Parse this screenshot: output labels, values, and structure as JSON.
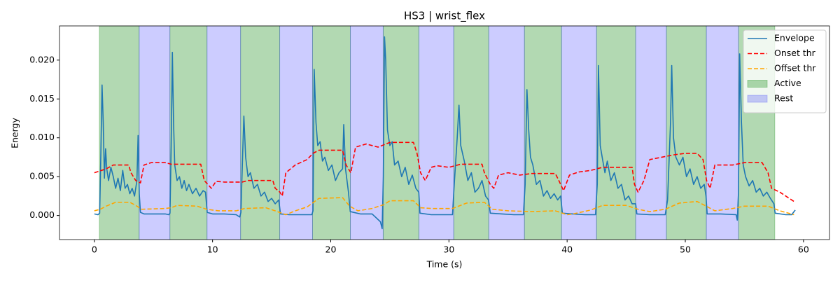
{
  "chart_data": {
    "type": "line",
    "title": "HS3 | wrist_flex",
    "x_label": "Time (s)",
    "y_label": "Energy",
    "xlim": [
      -2.95,
      62.2
    ],
    "ylim": [
      -0.0031,
      0.0244
    ],
    "xticks": [
      0,
      10,
      20,
      30,
      40,
      50,
      60
    ],
    "yticks": [
      {
        "value": 0,
        "label": "0.000"
      },
      {
        "value": 0.005,
        "label": "0.005"
      },
      {
        "value": 0.01,
        "label": "0.010"
      },
      {
        "value": 0.015,
        "label": "0.015"
      },
      {
        "value": 0.02,
        "label": "0.020"
      }
    ],
    "legend": "upper right",
    "series": [
      {
        "name": "Envelope",
        "color": "#1f77b4",
        "dash": "solid",
        "x": [
          0,
          0.3,
          0.45,
          0.55,
          0.65,
          0.75,
          0.85,
          0.95,
          1.05,
          1.2,
          1.4,
          1.6,
          1.8,
          2.0,
          2.2,
          2.4,
          2.6,
          2.8,
          3.0,
          3.2,
          3.4,
          3.6,
          3.7,
          3.8,
          3.9,
          4.2,
          5,
          6,
          6.3,
          6.4,
          6.5,
          6.6,
          6.7,
          6.8,
          7.0,
          7.2,
          7.4,
          7.6,
          7.8,
          8.0,
          8.3,
          8.6,
          8.9,
          9.2,
          9.4,
          9.55,
          10,
          11,
          12,
          12.3,
          12.4,
          12.55,
          12.65,
          12.8,
          13.0,
          13.2,
          13.5,
          13.8,
          14.1,
          14.4,
          14.7,
          15.0,
          15.3,
          15.6,
          15.75,
          16.5,
          17.5,
          18.4,
          18.5,
          18.6,
          18.75,
          18.9,
          19.1,
          19.3,
          19.5,
          19.8,
          20.1,
          20.4,
          20.7,
          21.0,
          21.1,
          21.25,
          21.5,
          21.65,
          22.5,
          23.5,
          24.2,
          24.35,
          24.45,
          24.55,
          24.65,
          24.8,
          25.0,
          25.2,
          25.4,
          25.7,
          26.0,
          26.3,
          26.6,
          26.9,
          27.2,
          27.45,
          27.55,
          28.5,
          29.5,
          30.3,
          30.45,
          30.7,
          30.85,
          31.0,
          31.3,
          31.6,
          31.9,
          32.2,
          32.5,
          32.8,
          33.1,
          33.35,
          33.5,
          34.5,
          35.5,
          36.3,
          36.45,
          36.6,
          36.75,
          36.9,
          37.1,
          37.4,
          37.7,
          38.0,
          38.3,
          38.6,
          38.9,
          39.2,
          39.45,
          39.6,
          40.5,
          41.5,
          42.4,
          42.55,
          42.65,
          42.8,
          43.0,
          43.2,
          43.4,
          43.7,
          44.0,
          44.3,
          44.6,
          44.9,
          45.2,
          45.5,
          45.8,
          45.9,
          47,
          48.3,
          48.5,
          48.75,
          48.85,
          49.0,
          49.2,
          49.5,
          49.8,
          50.1,
          50.4,
          50.7,
          51.0,
          51.3,
          51.6,
          51.75,
          51.85,
          53,
          54.3,
          54.4,
          54.5,
          54.6,
          54.75,
          54.9,
          55.1,
          55.4,
          55.7,
          56.0,
          56.3,
          56.6,
          56.9,
          57.2,
          57.5,
          57.6,
          58.5,
          59.0,
          59.3
        ],
        "values": [
          0.0002,
          0.0001,
          0.0003,
          0.008,
          0.0168,
          0.012,
          0.0048,
          0.0086,
          0.006,
          0.0045,
          0.0062,
          0.005,
          0.0035,
          0.0048,
          0.0032,
          0.0058,
          0.0035,
          0.004,
          0.0028,
          0.0035,
          0.0025,
          0.0045,
          0.0103,
          0.0028,
          0.0004,
          0.0002,
          0.0002,
          0.0002,
          0.0001,
          0.0003,
          0.009,
          0.021,
          0.012,
          0.0065,
          0.0045,
          0.005,
          0.0035,
          0.0045,
          0.0032,
          0.004,
          0.0028,
          0.0035,
          0.0025,
          0.0032,
          0.003,
          0.0004,
          0.0002,
          0.0002,
          0.0001,
          -0.0002,
          0.0004,
          0.008,
          0.0128,
          0.0075,
          0.005,
          0.0055,
          0.0035,
          0.004,
          0.0025,
          0.003,
          0.0018,
          0.0022,
          0.0015,
          0.002,
          0.0002,
          0.0001,
          0.0001,
          0.0001,
          0.0006,
          0.0188,
          0.012,
          0.009,
          0.0095,
          0.007,
          0.0075,
          0.0058,
          0.0065,
          0.0045,
          0.0055,
          0.006,
          0.0117,
          0.006,
          0.003,
          0.0005,
          0.0002,
          0.0002,
          -0.0008,
          -0.0017,
          0.005,
          0.023,
          0.02,
          0.011,
          0.009,
          0.0095,
          0.0065,
          0.007,
          0.005,
          0.0062,
          0.004,
          0.0052,
          0.0035,
          0.003,
          0.0003,
          0.0001,
          0.0001,
          0.0001,
          0.004,
          0.01,
          0.0142,
          0.009,
          0.007,
          0.0045,
          0.0055,
          0.003,
          0.0035,
          0.0045,
          0.0025,
          0.002,
          0.0003,
          0.0002,
          0.0001,
          0.0001,
          0.004,
          0.0162,
          0.011,
          0.0075,
          0.0065,
          0.004,
          0.0045,
          0.0025,
          0.0032,
          0.0022,
          0.0028,
          0.002,
          0.0025,
          0.0003,
          0.0002,
          0.0001,
          0.0001,
          0.004,
          0.0193,
          0.009,
          0.0072,
          0.0055,
          0.007,
          0.0045,
          0.0055,
          0.0035,
          0.004,
          0.002,
          0.0025,
          0.0015,
          0.0015,
          0.0002,
          0.0001,
          0.0001,
          0.002,
          0.012,
          0.0193,
          0.01,
          0.0075,
          0.0065,
          0.0075,
          0.005,
          0.006,
          0.004,
          0.005,
          0.0035,
          0.004,
          0.0025,
          0.0002,
          0.0002,
          0.0001,
          -0.0006,
          0.003,
          0.0208,
          0.012,
          0.0065,
          0.005,
          0.0038,
          0.0045,
          0.003,
          0.0035,
          0.0025,
          0.003,
          0.0022,
          0.0015,
          0.0003,
          0.0001,
          0.0001,
          0.0007
        ]
      },
      {
        "name": "Onset thr",
        "color": "#ff0000",
        "dash": "dashed",
        "x": [
          0,
          1,
          1.6,
          2.9,
          3.1,
          3.5,
          3.9,
          4.2,
          4.8,
          6,
          6.5,
          9,
          9.3,
          9.9,
          10.3,
          11,
          12.5,
          13,
          15.1,
          15.3,
          15.7,
          15.9,
          16.2,
          17,
          18,
          18.5,
          19,
          21,
          21.3,
          21.7,
          22.1,
          23,
          23.5,
          24,
          24.5,
          25,
          27,
          27.3,
          27.6,
          28,
          28.5,
          29,
          30,
          31,
          32.8,
          33,
          33.5,
          33.8,
          34.2,
          35,
          36,
          37,
          39,
          39.3,
          39.7,
          40.2,
          41,
          42,
          42.5,
          43,
          45.5,
          45.7,
          46,
          46.5,
          47,
          48,
          49,
          50,
          51,
          51.5,
          51.8,
          52.1,
          52.5,
          53,
          54,
          55,
          56.5,
          57,
          57.3,
          58,
          59.2
        ],
        "values": [
          0.0055,
          0.006,
          0.0065,
          0.0065,
          0.0055,
          0.0045,
          0.0042,
          0.0065,
          0.0068,
          0.0068,
          0.0066,
          0.0066,
          0.0045,
          0.0035,
          0.0044,
          0.0043,
          0.0043,
          0.0045,
          0.0045,
          0.0035,
          0.003,
          0.0025,
          0.0055,
          0.0065,
          0.0072,
          0.008,
          0.0084,
          0.0084,
          0.0065,
          0.0055,
          0.0088,
          0.0092,
          0.009,
          0.0088,
          0.0091,
          0.0094,
          0.0094,
          0.008,
          0.0055,
          0.0045,
          0.0062,
          0.0064,
          0.0062,
          0.0066,
          0.0066,
          0.0055,
          0.004,
          0.0035,
          0.0052,
          0.0055,
          0.0052,
          0.0054,
          0.0054,
          0.0045,
          0.0032,
          0.0052,
          0.0056,
          0.0058,
          0.006,
          0.0062,
          0.0062,
          0.004,
          0.003,
          0.0045,
          0.0072,
          0.0075,
          0.0078,
          0.008,
          0.008,
          0.0072,
          0.0045,
          0.0035,
          0.0065,
          0.0065,
          0.0065,
          0.0068,
          0.0068,
          0.0055,
          0.0035,
          0.003,
          0.0018
        ]
      },
      {
        "name": "Offset thr",
        "color": "#ffa500",
        "dash": "dashed",
        "x": [
          0,
          0.5,
          1,
          1.8,
          3,
          3.5,
          4,
          6,
          6.5,
          7,
          8.7,
          9.5,
          10.5,
          12,
          12.7,
          14.5,
          15.3,
          16.2,
          17,
          18,
          19,
          21,
          21.6,
          22.3,
          23.5,
          24.5,
          25,
          27,
          27.6,
          28.5,
          30.3,
          31.5,
          33,
          33.7,
          35,
          37,
          39,
          40,
          40.5,
          42,
          43,
          45,
          46,
          47,
          48.3,
          49.5,
          51,
          51.9,
          52.5,
          54,
          55,
          57,
          58,
          59.2
        ],
        "values": [
          0.0006,
          0.0008,
          0.0012,
          0.0017,
          0.0017,
          0.0013,
          0.0008,
          0.0009,
          0.001,
          0.0013,
          0.0012,
          0.0008,
          0.0006,
          0.0006,
          0.0009,
          0.001,
          0.0006,
          0.0001,
          0.0006,
          0.0011,
          0.0022,
          0.0023,
          0.0012,
          0.0006,
          0.0009,
          0.0014,
          0.0019,
          0.0019,
          0.001,
          0.0009,
          0.0009,
          0.0016,
          0.0017,
          0.0008,
          0.0006,
          0.0005,
          0.0006,
          0.0001,
          0.0002,
          0.0007,
          0.0013,
          0.0013,
          0.0008,
          0.0005,
          0.0008,
          0.0016,
          0.0018,
          0.0011,
          0.0006,
          0.0009,
          0.0012,
          0.0012,
          0.0006,
          0.0001
        ]
      }
    ],
    "regions": [
      {
        "name": "Active",
        "color": "#008000",
        "opacity": 0.3,
        "spans": [
          [
            0.42,
            3.79
          ],
          [
            6.39,
            9.53
          ],
          [
            12.37,
            15.68
          ],
          [
            18.46,
            21.66
          ],
          [
            24.44,
            27.46
          ],
          [
            30.41,
            33.37
          ],
          [
            36.39,
            39.53
          ],
          [
            42.49,
            45.8
          ],
          [
            48.4,
            51.78
          ],
          [
            54.5,
            57.57
          ]
        ]
      },
      {
        "name": "Rest",
        "color": "#0000ff",
        "opacity": 0.2,
        "spans": [
          [
            3.79,
            6.39
          ],
          [
            9.53,
            12.37
          ],
          [
            15.68,
            18.46
          ],
          [
            21.66,
            24.44
          ],
          [
            27.46,
            30.41
          ],
          [
            33.37,
            36.39
          ],
          [
            39.53,
            42.49
          ],
          [
            45.8,
            48.4
          ],
          [
            51.78,
            54.5
          ]
        ]
      }
    ]
  }
}
